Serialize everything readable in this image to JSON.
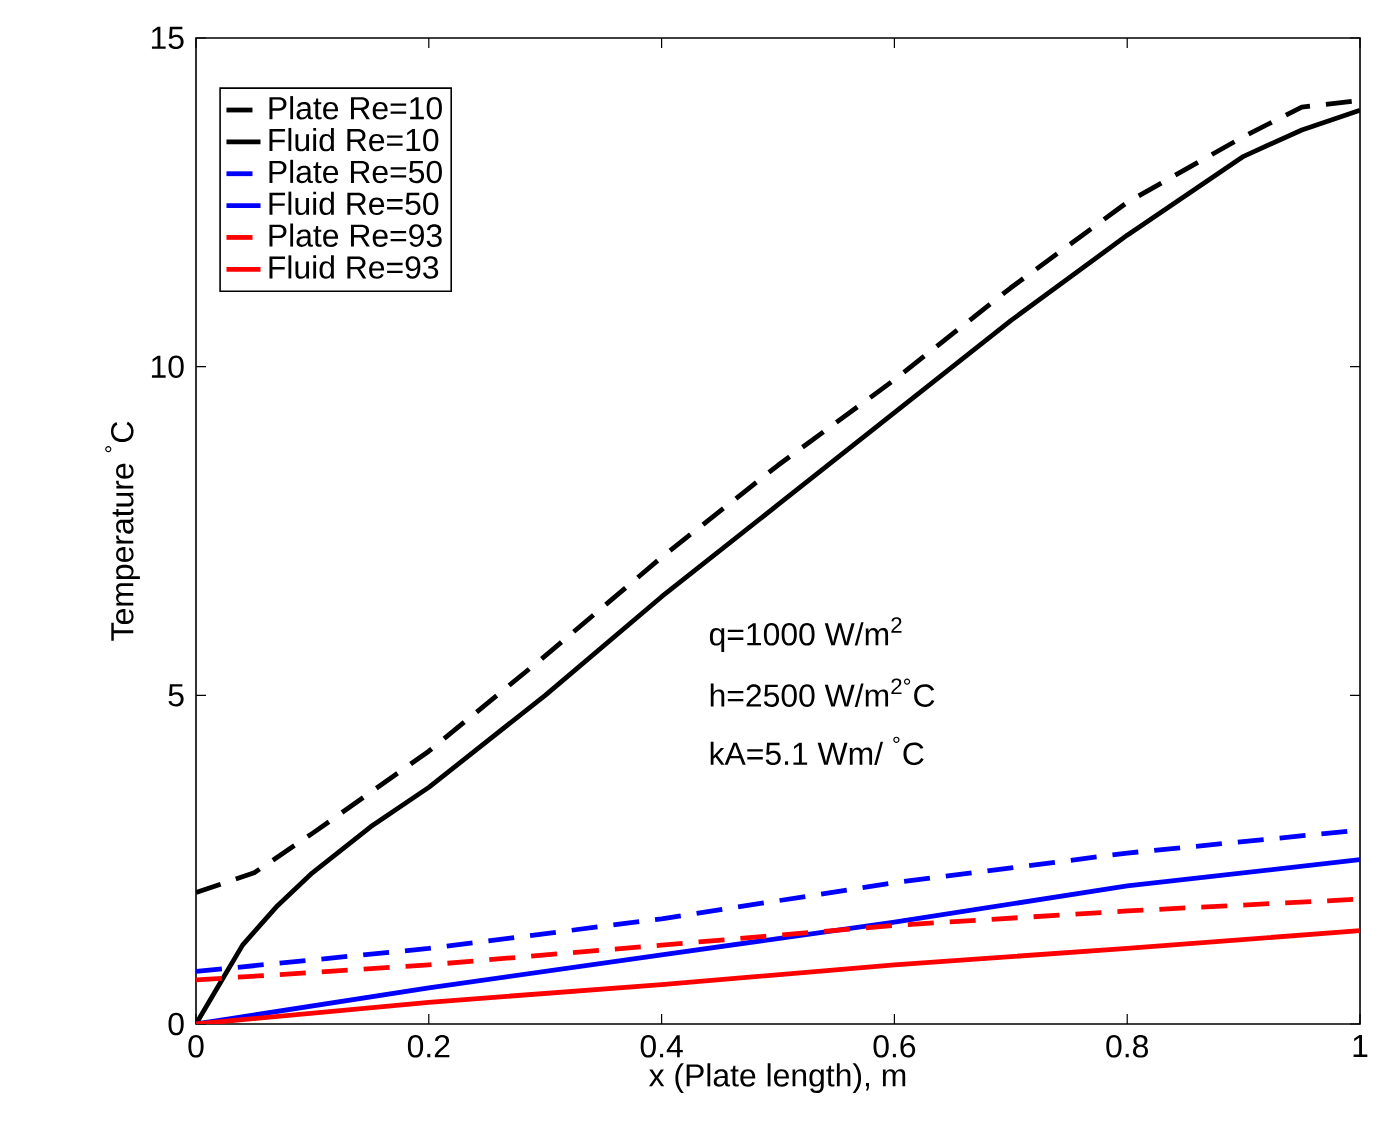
{
  "chart_data": {
    "type": "line",
    "xlabel": "x (Plate length), m",
    "ylabel": "Temperature $^{°}$C",
    "xlim": [
      0,
      1
    ],
    "ylim": [
      0,
      15
    ],
    "xticks": [
      0,
      0.2,
      0.4,
      0.6,
      0.8,
      1
    ],
    "yticks": [
      0,
      5,
      10,
      15
    ],
    "legend": "top left",
    "annotations": [
      "q=1000 W/m$^{2}$",
      "h=2500 W/m$^{2°}$C",
      "kA=5.1 Wm/ $^{°}$C"
    ],
    "series": [
      {
        "name": "Plate Re=10",
        "color": "#000000",
        "line_style": "dashed",
        "x": [
          0,
          0.05,
          0.1,
          0.2,
          0.3,
          0.4,
          0.5,
          0.6,
          0.7,
          0.8,
          0.9,
          0.95,
          1
        ],
        "values": [
          2.0,
          2.3,
          2.9,
          4.15,
          5.6,
          7.1,
          8.5,
          9.8,
          11.2,
          12.5,
          13.5,
          13.95,
          14.05
        ]
      },
      {
        "name": "Fluid Re=10",
        "color": "#000000",
        "line_style": "solid",
        "x": [
          0,
          0.02,
          0.04,
          0.07,
          0.1,
          0.15,
          0.2,
          0.3,
          0.4,
          0.5,
          0.6,
          0.7,
          0.8,
          0.9,
          0.95,
          1
        ],
        "values": [
          0,
          0.6,
          1.2,
          1.8,
          2.3,
          3.0,
          3.6,
          5.0,
          6.5,
          7.9,
          9.3,
          10.7,
          12.0,
          13.2,
          13.6,
          13.9
        ]
      },
      {
        "name": "Plate Re=50",
        "color": "#0000ff",
        "line_style": "dashed",
        "x": [
          0,
          0.2,
          0.4,
          0.6,
          0.8,
          1
        ],
        "values": [
          0.8,
          1.15,
          1.6,
          2.15,
          2.6,
          2.95
        ]
      },
      {
        "name": "Fluid Re=50",
        "color": "#0000ff",
        "line_style": "solid",
        "x": [
          0,
          0.2,
          0.4,
          0.6,
          0.8,
          1
        ],
        "values": [
          0,
          0.55,
          1.05,
          1.55,
          2.1,
          2.5
        ]
      },
      {
        "name": "Plate Re=93",
        "color": "#ff0000",
        "line_style": "dashed",
        "x": [
          0,
          0.2,
          0.4,
          0.6,
          0.8,
          1
        ],
        "values": [
          0.67,
          0.9,
          1.2,
          1.5,
          1.72,
          1.9
        ]
      },
      {
        "name": "Fluid Re=93",
        "color": "#ff0000",
        "line_style": "solid",
        "x": [
          0,
          0.2,
          0.4,
          0.6,
          0.8,
          1
        ],
        "values": [
          0,
          0.33,
          0.6,
          0.9,
          1.15,
          1.42
        ]
      }
    ]
  }
}
